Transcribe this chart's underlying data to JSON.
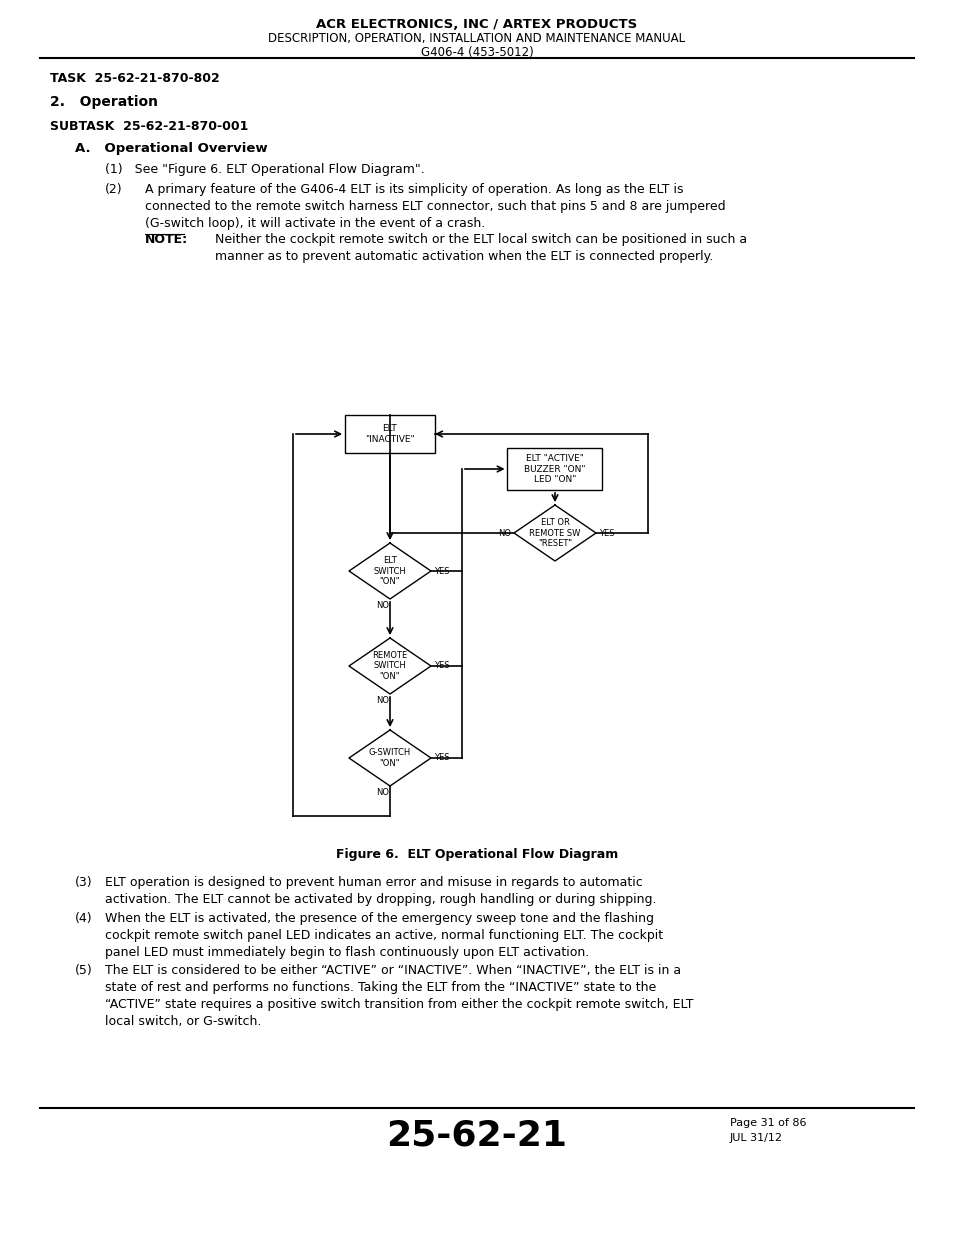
{
  "title_line1": "ACR ELECTRONICS, INC / ARTEX PRODUCTS",
  "title_line2": "DESCRIPTION, OPERATION, INSTALLATION AND MAINTENANCE MANUAL",
  "title_line3": "G406-4 (453-5012)",
  "task": "TASK  25-62-21-870-802",
  "section": "2.   Operation",
  "subtask": "SUBTASK  25-62-21-870-001",
  "subsection": "A.   Operational Overview",
  "item1": "(1)   See \"Figure 6. ELT Operational Flow Diagram\".",
  "item2_lines": [
    "A primary feature of the G406-4 ELT is its simplicity of operation. As long as the ELT is",
    "connected to the remote switch harness ELT connector, such that pins 5 and 8 are jumpered",
    "(G-switch loop), it will activate in the event of a crash."
  ],
  "note_label": "NOTE:",
  "note_lines": [
    "Neither the cockpit remote switch or the ELT local switch can be positioned in such a",
    "manner as to prevent automatic activation when the ELT is connected properly."
  ],
  "fig_caption": "Figure 6.  ELT Operational Flow Diagram",
  "item3_lines": [
    "ELT operation is designed to prevent human error and misuse in regards to automatic",
    "activation. The ELT cannot be activated by dropping, rough handling or during shipping."
  ],
  "item4_lines": [
    "When the ELT is activated, the presence of the emergency sweep tone and the flashing",
    "cockpit remote switch panel LED indicates an active, normal functioning ELT. The cockpit",
    "panel LED must immediately begin to flash continuously upon ELT activation."
  ],
  "item5_lines": [
    "The ELT is considered to be either “ACTIVE” or “INACTIVE”. When “INACTIVE”, the ELT is in a",
    "state of rest and performs no functions. Taking the ELT from the “INACTIVE” state to the",
    "“ACTIVE” state requires a positive switch transition from either the cockpit remote switch, ELT",
    "local switch, or G-switch."
  ],
  "footer_number": "25-62-21",
  "footer_page": "Page 31 of 86",
  "footer_date": "JUL 31/12",
  "bg_color": "#ffffff",
  "text_color": "#000000"
}
